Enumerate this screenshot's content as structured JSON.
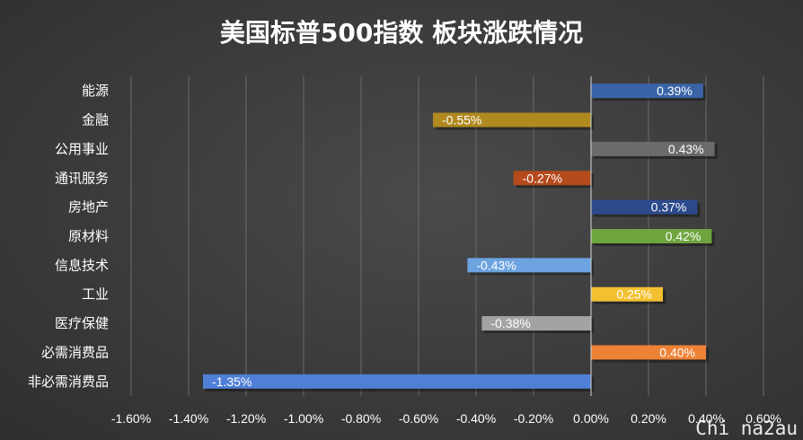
{
  "chart_data": {
    "type": "bar",
    "orientation": "horizontal",
    "title": "美国标普500指数 板块涨跌情况",
    "categories": [
      "能源",
      "金融",
      "公用事业",
      "通讯服务",
      "房地产",
      "原材料",
      "信息技术",
      "工业",
      "医疗保健",
      "必需消费品",
      "非必需消费品"
    ],
    "values": [
      0.39,
      -0.55,
      0.43,
      -0.27,
      0.37,
      0.42,
      -0.43,
      0.25,
      -0.38,
      0.4,
      -1.35
    ],
    "data_labels": [
      "0.39%",
      "-0.55%",
      "0.43%",
      "-0.27%",
      "0.37%",
      "0.42%",
      "-0.43%",
      "0.25%",
      "-0.38%",
      "0.40%",
      "-1.35%"
    ],
    "colors": [
      "#3a64a6",
      "#b0891f",
      "#6b6b6b",
      "#b54a1c",
      "#2b4a8c",
      "#6ea53e",
      "#6da3e0",
      "#f2c030",
      "#a3a3a3",
      "#ee8236",
      "#4f7fd6"
    ],
    "xlim": [
      -1.6,
      0.6
    ],
    "x_ticks": [
      -1.6,
      -1.4,
      -1.2,
      -1.0,
      -0.8,
      -0.6,
      -0.4,
      -0.2,
      0.0,
      0.2,
      0.4,
      0.6
    ],
    "x_tick_labels": [
      "-1.60%",
      "-1.40%",
      "-1.20%",
      "-1.00%",
      "-0.80%",
      "-0.60%",
      "-0.40%",
      "-0.20%",
      "0.00%",
      "0.20%",
      "0.40%",
      "0.60%"
    ],
    "grid": true,
    "legend": "none"
  },
  "watermark": "Chi na2au"
}
